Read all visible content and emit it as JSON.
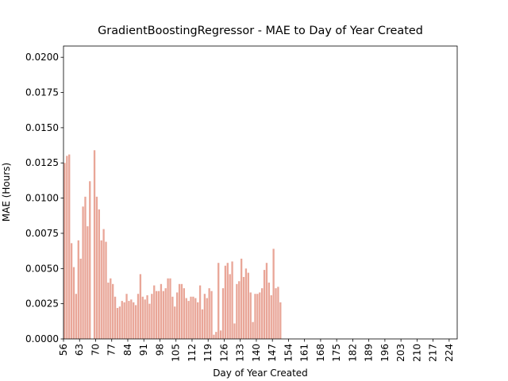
{
  "chart_data": {
    "type": "bar",
    "title": "GradientBoostingRegressor - MAE to Day of Year Created",
    "xlabel": "Day of Year Created",
    "ylabel": "MAE (Hours)",
    "color": "#e9a698",
    "x": [
      56,
      57,
      58,
      59,
      60,
      61,
      62,
      63,
      64,
      65,
      66,
      67,
      68,
      69,
      70,
      71,
      72,
      73,
      74,
      75,
      76,
      77,
      78,
      79,
      80,
      81,
      82,
      83,
      84,
      85,
      86,
      87,
      88,
      89,
      90,
      91,
      92,
      93,
      94,
      95,
      96,
      97,
      98,
      99,
      100,
      101,
      102,
      103,
      104,
      105,
      106,
      107,
      108,
      109,
      110,
      111,
      112,
      113,
      114,
      115,
      116,
      117,
      118,
      119,
      120,
      121,
      122,
      123,
      124,
      125,
      126,
      127,
      128,
      129,
      130,
      131,
      132,
      133,
      134,
      135,
      136,
      137,
      138,
      139,
      140,
      141,
      142,
      143,
      144,
      145,
      146,
      147,
      148,
      149,
      150
    ],
    "values": [
      0.0125,
      0.013,
      0.0131,
      0.0068,
      0.0051,
      0.0032,
      0.007,
      0.0057,
      0.0094,
      0.0101,
      0.008,
      0.0112,
      0,
      0.0134,
      0.0101,
      0.0092,
      0.007,
      0.0078,
      0.0069,
      0.004,
      0.0043,
      0.0039,
      0.003,
      0.0022,
      0.0023,
      0.0027,
      0.0026,
      0.0032,
      0.0027,
      0.0028,
      0.0026,
      0.0024,
      0.0032,
      0.0046,
      0.003,
      0.0028,
      0.0031,
      0.0025,
      0.0032,
      0.0038,
      0.0034,
      0.0034,
      0.0039,
      0.0034,
      0.0036,
      0.0043,
      0.0043,
      0.003,
      0.0023,
      0.0033,
      0.0039,
      0.0039,
      0.0036,
      0.0029,
      0.0027,
      0.003,
      0.003,
      0.0029,
      0.0026,
      0.0038,
      0.0021,
      0.0032,
      0.0029,
      0.0036,
      0.0034,
      0.0003,
      0.0005,
      0.0054,
      0.0006,
      0.0036,
      0.0052,
      0.0054,
      0.0046,
      0.0055,
      0.0011,
      0.0039,
      0.0041,
      0.0057,
      0.0044,
      0.005,
      0.0047,
      0.0033,
      0.0012,
      0.0032,
      0.0032,
      0.0033,
      0.0036,
      0.0049,
      0.0054,
      0.004,
      0.0031,
      0.0064,
      0.0036,
      0.0037,
      0.0026
    ],
    "xlim": [
      56,
      227.5
    ],
    "xticks": [
      56,
      63,
      70,
      77,
      84,
      91,
      98,
      105,
      112,
      119,
      126,
      133,
      140,
      147,
      154,
      161,
      168,
      175,
      182,
      189,
      196,
      203,
      210,
      217,
      224
    ],
    "ylim": [
      0,
      0.0208
    ],
    "yticks": [
      {
        "value": 0,
        "label": "0.0000"
      },
      {
        "value": 0.0025,
        "label": "0.0025"
      },
      {
        "value": 0.005,
        "label": "0.0050"
      },
      {
        "value": 0.0075,
        "label": "0.0075"
      },
      {
        "value": 0.01,
        "label": "0.0100"
      },
      {
        "value": 0.0125,
        "label": "0.0125"
      },
      {
        "value": 0.015,
        "label": "0.0150"
      },
      {
        "value": 0.0175,
        "label": "0.0175"
      },
      {
        "value": 0.02,
        "label": "0.0200"
      }
    ]
  }
}
